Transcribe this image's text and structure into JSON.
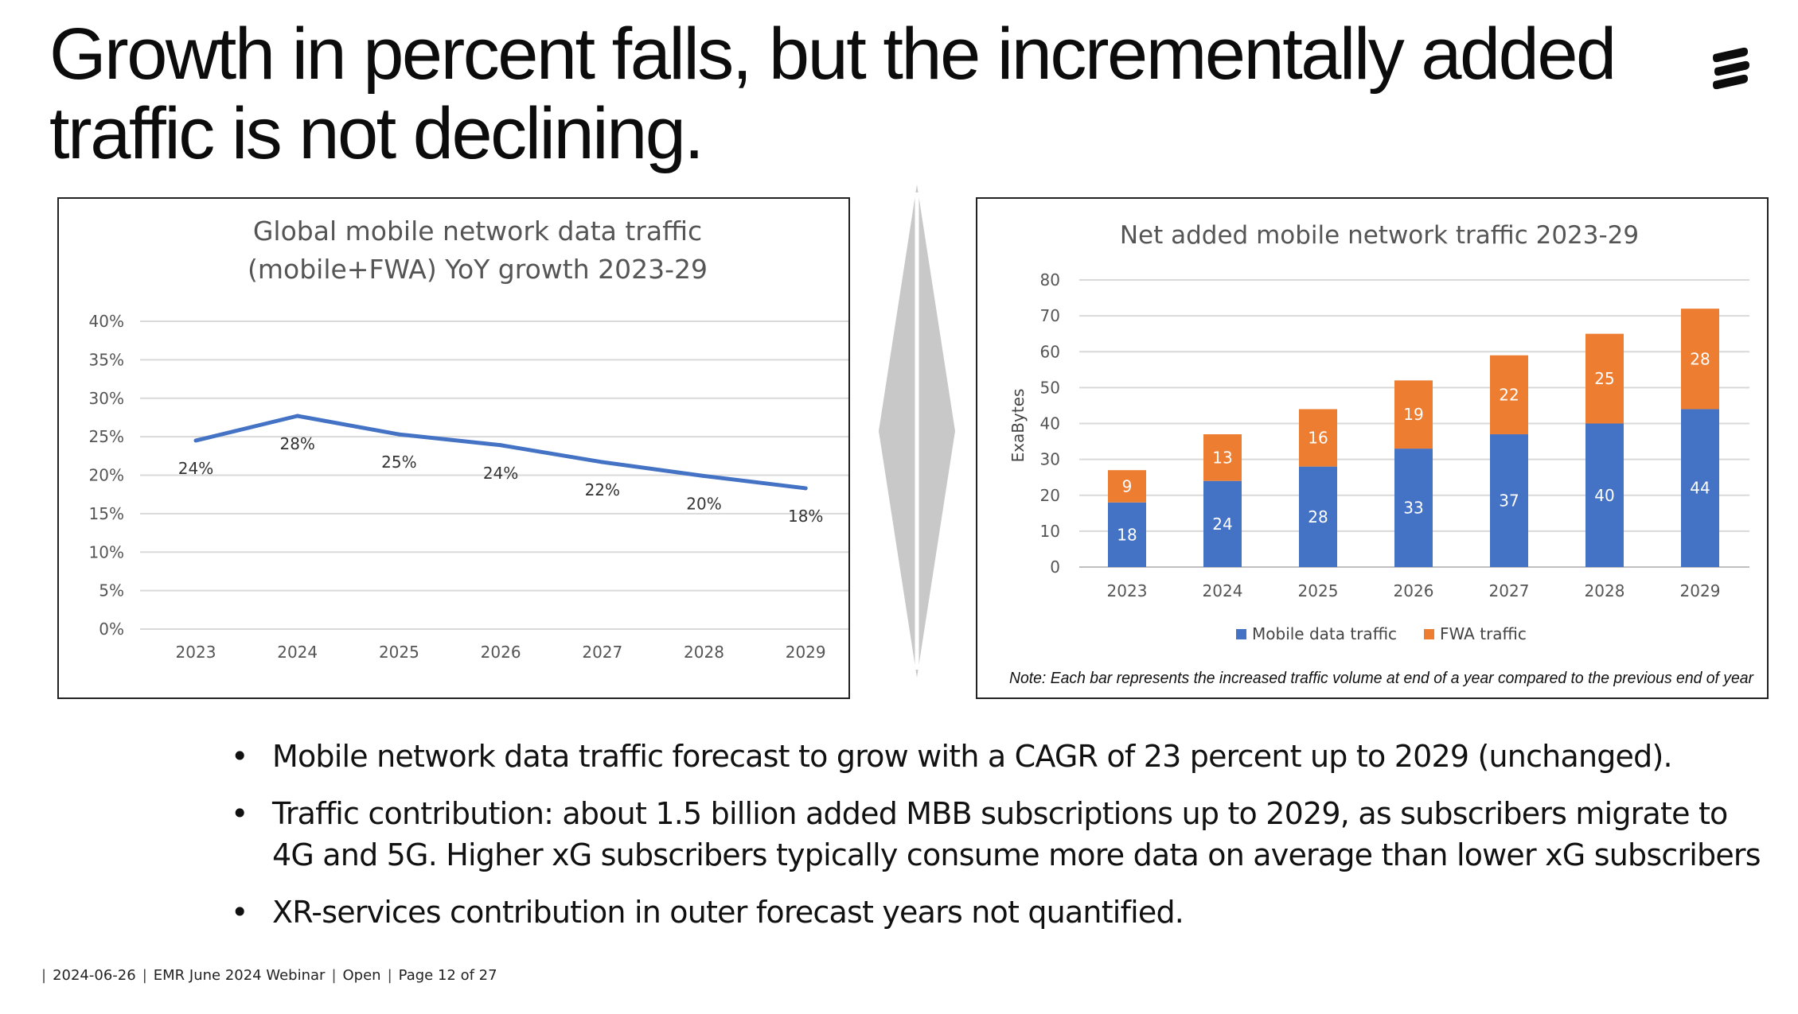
{
  "slide": {
    "title": "Growth in percent falls, but the incrementally added traffic is not declining."
  },
  "logo": {
    "icon": "ericsson-logo-icon",
    "color": "#0c0c0c"
  },
  "footer": {
    "date": "2024-06-26",
    "event": "EMR June 2024 Webinar",
    "classification": "Open",
    "page": "Page 12 of 27"
  },
  "bullets": [
    "Mobile network data traffic forecast to grow with a CAGR of 23 percent up to 2029 (unchanged).",
    "Traffic contribution: about 1.5 billion added MBB subscriptions up to 2029, as subscribers migrate to 4G and 5G. Higher xG subscribers typically consume more data on average than lower xG subscribers",
    "XR-services contribution in outer forecast years not quantified."
  ],
  "chart_data": [
    {
      "type": "line",
      "title": "Global mobile network data traffic (mobile+FWA) YoY growth 2023-29",
      "title_lines": [
        "Global mobile network data traffic",
        "(mobile+FWA) YoY growth 2023-29"
      ],
      "categories": [
        "2023",
        "2024",
        "2025",
        "2026",
        "2027",
        "2028",
        "2029"
      ],
      "values": [
        24.5,
        27.7,
        25.3,
        23.9,
        21.7,
        19.9,
        18.3
      ],
      "data_labels": [
        "24%",
        "28%",
        "25%",
        "24%",
        "22%",
        "20%",
        "18%"
      ],
      "ylim": [
        0,
        40
      ],
      "yticks": [
        "0%",
        "5%",
        "10%",
        "15%",
        "20%",
        "25%",
        "30%",
        "35%",
        "40%"
      ],
      "grid": true,
      "color": "#4472c4"
    },
    {
      "type": "bar",
      "stacked": true,
      "title": "Net added mobile network traffic 2023-29",
      "ylabel": "ExaBytes",
      "categories": [
        "2023",
        "2024",
        "2025",
        "2026",
        "2027",
        "2028",
        "2029"
      ],
      "series": [
        {
          "name": "Mobile data traffic",
          "values": [
            18,
            24,
            28,
            33,
            37,
            40,
            44
          ],
          "color": "#4472c4"
        },
        {
          "name": "FWA traffic",
          "values": [
            9,
            13,
            16,
            19,
            22,
            25,
            28
          ],
          "color": "#ed7d31"
        }
      ],
      "ylim": [
        0,
        80
      ],
      "yticks": [
        "0",
        "10",
        "20",
        "30",
        "40",
        "50",
        "60",
        "70",
        "80"
      ],
      "grid": true,
      "legend_position": "bottom",
      "note": "Note: Each bar represents the increased traffic volume at end of a year compared to the previous end of year"
    }
  ]
}
